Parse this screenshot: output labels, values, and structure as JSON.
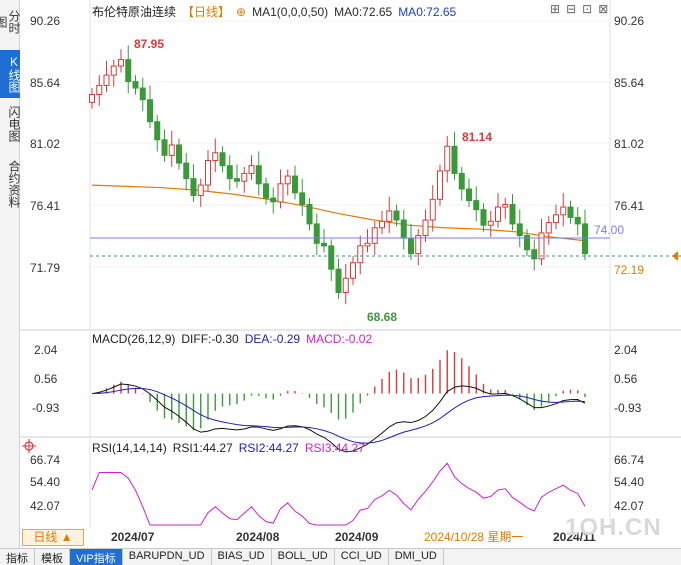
{
  "sidebar": {
    "tabs": [
      {
        "label": "分时图",
        "active": false
      },
      {
        "label": "K线图",
        "active": true
      },
      {
        "label": "闪电图",
        "active": false
      },
      {
        "label": "合约资料",
        "active": false
      }
    ]
  },
  "header": {
    "title": "布伦特原油连续",
    "period": "【日线】",
    "target_icon": "crosshair-icon",
    "ma_params": "MA1(0,0,0,50)",
    "ma0_a": "MA0:72.65",
    "ma0_b": "MA0:72.65"
  },
  "window_icons": [
    "add-icon",
    "minimize-icon",
    "maximize-icon",
    "close-icon"
  ],
  "price_panel": {
    "y_ticks": [
      "90.26",
      "85.64",
      "81.02",
      "76.41",
      "71.79"
    ],
    "y_ticks_right": [
      "90.26",
      "85.64",
      "81.02",
      "76.41"
    ],
    "annotations": {
      "high1": "87.95",
      "low": "68.68",
      "high2": "81.14"
    },
    "hline_value": "74.00",
    "last_price": "72.19",
    "last_price_hidden": "72.65"
  },
  "macd_panel": {
    "label": "MACD(26,12,9)",
    "diff": "DIFF:-0.30",
    "dea": "DEA:-0.29",
    "macd": "MACD:-0.02",
    "y_ticks": [
      "2.04",
      "0.56",
      "-0.93"
    ]
  },
  "rsi_panel": {
    "label": "RSI(14,14,14)",
    "rsi1": "RSI1:44.27",
    "rsi2": "RSI2:44.27",
    "rsi3": "RSI3:44.27",
    "y_ticks": [
      "66.74",
      "54.40",
      "42.07"
    ]
  },
  "x_axis": {
    "labels": [
      "2024/07",
      "2024/08",
      "2024/09",
      "2024/10/28 星期一",
      "2024/11"
    ]
  },
  "period_button": "日线 ▲",
  "bottom_tabs": [
    {
      "label": "指标",
      "active": false
    },
    {
      "label": "模板",
      "active": false
    },
    {
      "label": "VIP指标",
      "active": true
    },
    {
      "label": "BARUPDN_UD",
      "active": false
    },
    {
      "label": "BIAS_UD",
      "active": false
    },
    {
      "label": "BOLL_UD",
      "active": false
    },
    {
      "label": "CCI_UD",
      "active": false
    },
    {
      "label": "DMI_UD",
      "active": false
    }
  ],
  "watermark": "1OH.CN",
  "colors": {
    "up": "#d63b3b",
    "down": "#3a9a3a",
    "ma": "#e07b00",
    "hline": "#5a5ad8",
    "rsi": "#d21fd2",
    "macd_diff": "#111111",
    "macd_dea": "#1f1fb0"
  },
  "chart_data": {
    "type": "candlestick",
    "title": "布伦特原油连续",
    "price_range": [
      68.68,
      90.26
    ],
    "ma50": [
      77.5,
      77.4,
      77.3,
      77.1,
      76.8,
      76.4,
      75.9,
      75.3,
      74.8,
      74.4,
      74.2,
      74.1,
      73.9,
      73.5,
      73.2
    ],
    "closes": [
      84.5,
      85.2,
      86.0,
      86.7,
      87.2,
      85.5,
      85.0,
      84.1,
      82.4,
      81.0,
      79.8,
      80.6,
      79.2,
      78.0,
      76.7,
      77.5,
      79.4,
      80.0,
      79.0,
      78.0,
      77.8,
      78.4,
      79.0,
      77.6,
      76.5,
      76.2,
      77.6,
      78.2,
      76.9,
      76.0,
      74.5,
      73.0,
      72.8,
      71.0,
      69.2,
      70.3,
      71.5,
      72.8,
      73.0,
      74.2,
      74.7,
      75.5,
      74.8,
      73.4,
      72.2,
      73.6,
      74.8,
      76.4,
      78.6,
      80.5,
      78.4,
      77.2,
      76.3,
      75.6,
      74.4,
      74.7,
      75.8,
      76.0,
      74.5,
      73.6,
      72.5,
      71.8,
      73.8,
      74.6,
      75.2,
      75.8,
      75.0,
      74.5,
      72.2
    ],
    "macd_range": [
      -1.8,
      2.04
    ],
    "rsi_range": [
      30,
      70
    ]
  }
}
